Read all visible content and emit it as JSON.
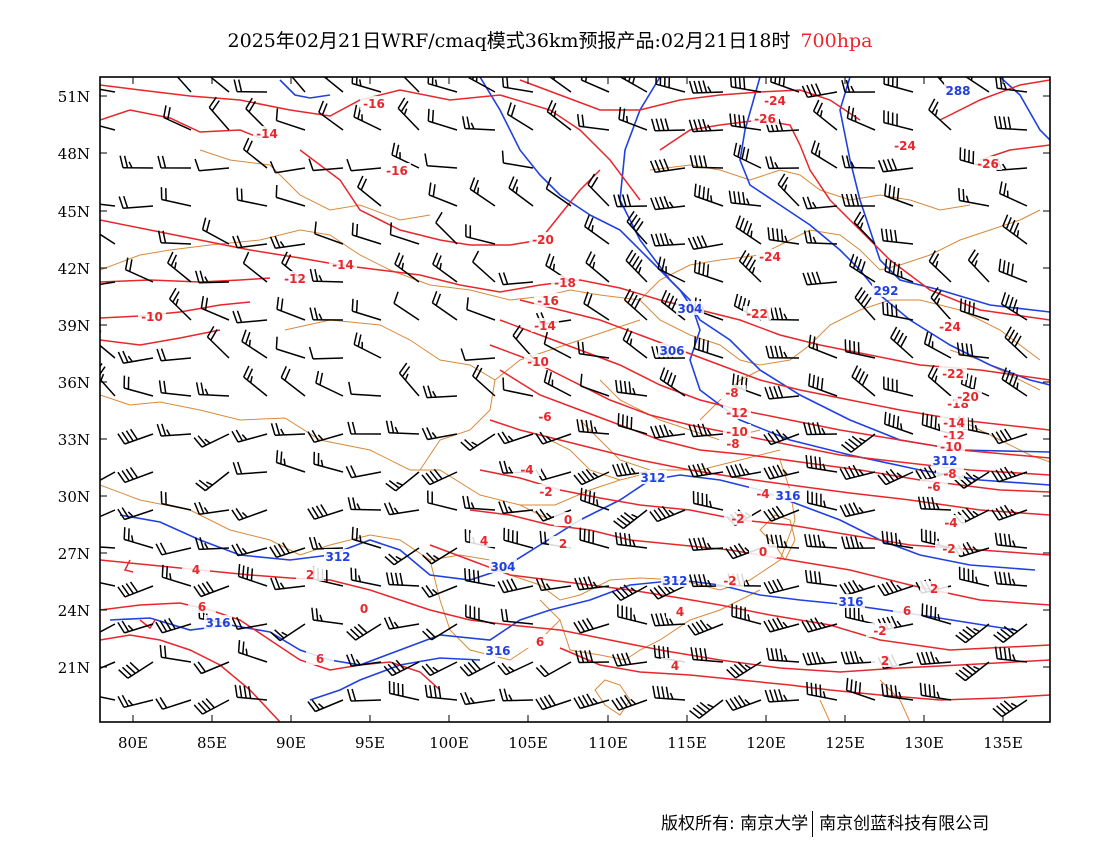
{
  "title": {
    "main": "2025年02月21日WRF/cmaq模式36km预报产品:02月21日18时",
    "level": "700hpa"
  },
  "colors": {
    "temperature": "#e8262b",
    "height": "#2040e0",
    "border": "#d98a3a",
    "frame": "#000000"
  },
  "axes": {
    "lat_labels": [
      "51N",
      "48N",
      "45N",
      "42N",
      "39N",
      "36N",
      "33N",
      "30N",
      "27N",
      "24N",
      "21N"
    ],
    "lon_labels": [
      "80E",
      "85E",
      "90E",
      "95E",
      "100E",
      "105E",
      "110E",
      "115E",
      "120E",
      "125E",
      "130E",
      "135E"
    ]
  },
  "temperature_labels": [
    "-16",
    "-14",
    "-16",
    "-24",
    "-26",
    "-24",
    "-26",
    "-20",
    "-14",
    "-12",
    "-10",
    "-18",
    "-16",
    "-14",
    "-24",
    "-22",
    "-10",
    "-24",
    "-22",
    "-8",
    "-6",
    "-12",
    "-10",
    "-8",
    "-18",
    "-20",
    "-14",
    "-12",
    "-10",
    "-4",
    "-2",
    "0",
    "-4",
    "-2",
    "-8",
    "-6",
    "-4",
    "2",
    "4",
    "2",
    "0",
    "-2",
    "-2",
    "4",
    "6",
    "2",
    "6",
    "4",
    "-2",
    "0",
    "6",
    "2",
    "6",
    "4"
  ],
  "height_labels": [
    "288",
    "304",
    "306",
    "292",
    "312",
    "312",
    "304",
    "312",
    "316",
    "312",
    "316",
    "316",
    "316"
  ],
  "copyright": {
    "left": "版权所有: 南京大学",
    "right": "南京创蓝科技有限公司"
  }
}
